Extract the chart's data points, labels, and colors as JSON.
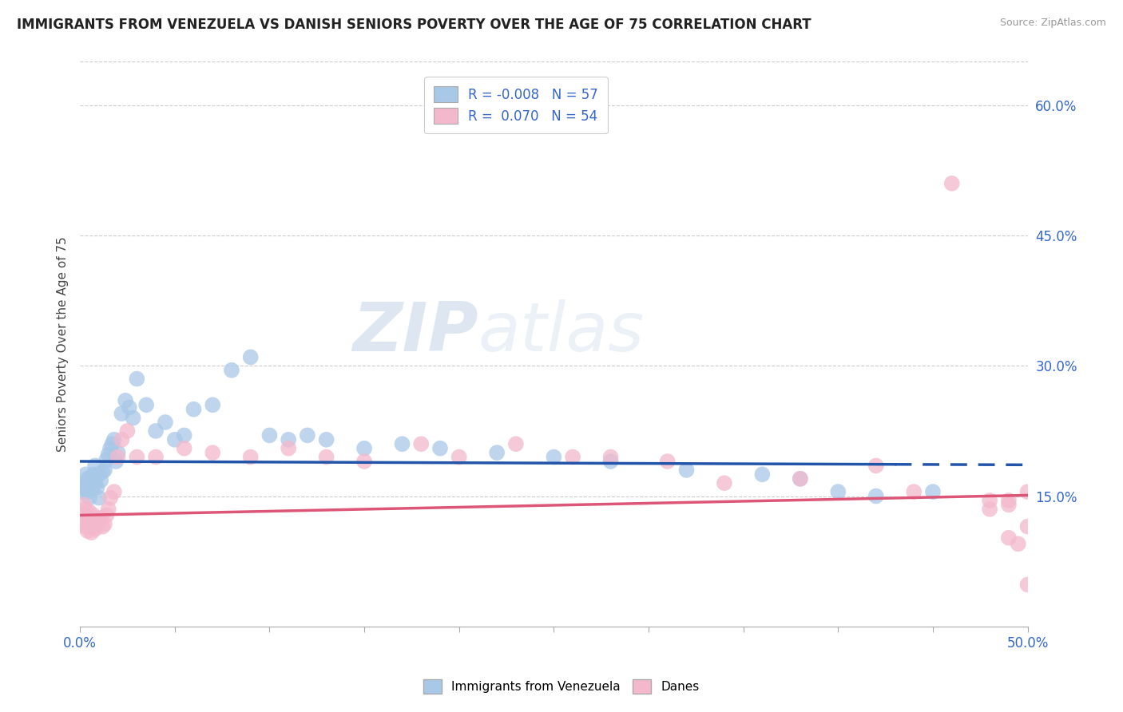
{
  "title": "IMMIGRANTS FROM VENEZUELA VS DANISH SENIORS POVERTY OVER THE AGE OF 75 CORRELATION CHART",
  "source": "Source: ZipAtlas.com",
  "ylabel": "Seniors Poverty Over the Age of 75",
  "xlim": [
    0.0,
    0.5
  ],
  "ylim": [
    0.0,
    0.65
  ],
  "yticks_right": [
    0.15,
    0.3,
    0.45,
    0.6
  ],
  "ytick_right_labels": [
    "15.0%",
    "30.0%",
    "45.0%",
    "60.0%"
  ],
  "blue_color": "#a8c8e8",
  "pink_color": "#f4b8cc",
  "blue_line_color": "#2255aa",
  "pink_line_color": "#dd5577",
  "trend_blue_intercept": 0.19,
  "trend_blue_slope": -0.008,
  "trend_pink_intercept": 0.128,
  "trend_pink_slope": 0.046,
  "blue_scatter_x": [
    0.001,
    0.002,
    0.003,
    0.003,
    0.004,
    0.004,
    0.005,
    0.005,
    0.006,
    0.006,
    0.007,
    0.007,
    0.008,
    0.008,
    0.009,
    0.01,
    0.01,
    0.011,
    0.012,
    0.013,
    0.014,
    0.015,
    0.016,
    0.017,
    0.018,
    0.019,
    0.02,
    0.022,
    0.024,
    0.026,
    0.028,
    0.03,
    0.035,
    0.04,
    0.045,
    0.05,
    0.055,
    0.06,
    0.07,
    0.08,
    0.09,
    0.1,
    0.11,
    0.12,
    0.13,
    0.15,
    0.17,
    0.19,
    0.22,
    0.25,
    0.28,
    0.32,
    0.36,
    0.38,
    0.4,
    0.42,
    0.45
  ],
  "blue_scatter_y": [
    0.155,
    0.16,
    0.165,
    0.175,
    0.155,
    0.17,
    0.148,
    0.165,
    0.158,
    0.172,
    0.162,
    0.175,
    0.165,
    0.185,
    0.16,
    0.148,
    0.175,
    0.168,
    0.178,
    0.18,
    0.192,
    0.198,
    0.205,
    0.21,
    0.215,
    0.19,
    0.2,
    0.245,
    0.26,
    0.252,
    0.24,
    0.285,
    0.255,
    0.225,
    0.235,
    0.215,
    0.22,
    0.25,
    0.255,
    0.295,
    0.31,
    0.22,
    0.215,
    0.22,
    0.215,
    0.205,
    0.21,
    0.205,
    0.2,
    0.195,
    0.19,
    0.18,
    0.175,
    0.17,
    0.155,
    0.15,
    0.155
  ],
  "pink_scatter_x": [
    0.001,
    0.002,
    0.002,
    0.003,
    0.003,
    0.004,
    0.004,
    0.005,
    0.005,
    0.006,
    0.006,
    0.007,
    0.007,
    0.008,
    0.009,
    0.01,
    0.011,
    0.012,
    0.013,
    0.014,
    0.015,
    0.016,
    0.018,
    0.02,
    0.022,
    0.025,
    0.03,
    0.04,
    0.055,
    0.07,
    0.09,
    0.11,
    0.13,
    0.15,
    0.18,
    0.2,
    0.23,
    0.26,
    0.28,
    0.31,
    0.34,
    0.38,
    0.42,
    0.44,
    0.46,
    0.48,
    0.49,
    0.5,
    0.48,
    0.49,
    0.5,
    0.495,
    0.49,
    0.5
  ],
  "pink_scatter_y": [
    0.13,
    0.12,
    0.14,
    0.115,
    0.135,
    0.11,
    0.125,
    0.118,
    0.132,
    0.108,
    0.122,
    0.115,
    0.128,
    0.112,
    0.118,
    0.12,
    0.125,
    0.115,
    0.118,
    0.128,
    0.135,
    0.148,
    0.155,
    0.195,
    0.215,
    0.225,
    0.195,
    0.195,
    0.205,
    0.2,
    0.195,
    0.205,
    0.195,
    0.19,
    0.21,
    0.195,
    0.21,
    0.195,
    0.195,
    0.19,
    0.165,
    0.17,
    0.185,
    0.155,
    0.51,
    0.145,
    0.145,
    0.155,
    0.135,
    0.14,
    0.115,
    0.095,
    0.102,
    0.048
  ],
  "watermark_zip": "ZIP",
  "watermark_atlas": "atlas",
  "background_color": "#ffffff",
  "grid_color": "#cccccc"
}
